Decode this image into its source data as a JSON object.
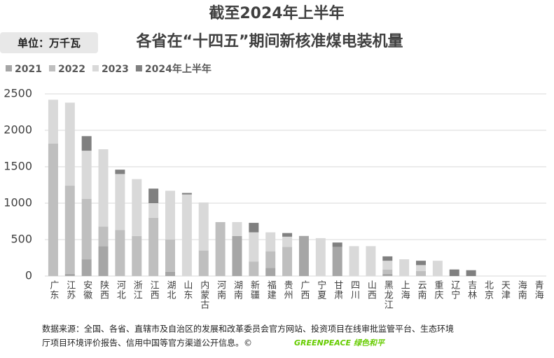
{
  "chart_data": {
    "type": "stacked_bar",
    "title": "截至2024年上半年",
    "subtitle": "各省在“十四五”期间新核准煤电装机量",
    "unit_label": "单位：万千瓦",
    "categories": [
      "广东",
      "江苏",
      "安徽",
      "陕西",
      "河北",
      "浙江",
      "江西",
      "湖北",
      "山东",
      "内蒙古",
      "河南",
      "湖南",
      "新疆",
      "福建",
      "贵州",
      "广西",
      "宁夏",
      "甘肃",
      "四川",
      "山西",
      "黑龙江",
      "上海",
      "云南",
      "重庆",
      "辽宁",
      "吉林",
      "北京",
      "天津",
      "海南",
      "青海"
    ],
    "series": [
      {
        "name": "2021",
        "color": "#a6a6a6",
        "values": [
          0,
          30,
          230,
          410,
          0,
          0,
          0,
          60,
          0,
          0,
          0,
          550,
          0,
          110,
          0,
          550,
          0,
          400,
          0,
          0,
          30,
          0,
          0,
          0,
          0,
          0,
          0,
          0,
          0,
          0
        ]
      },
      {
        "name": "2022",
        "color": "#bfbfbf",
        "values": [
          1820,
          1210,
          830,
          270,
          630,
          550,
          800,
          440,
          0,
          350,
          740,
          0,
          200,
          230,
          400,
          0,
          0,
          0,
          0,
          0,
          60,
          0,
          70,
          0,
          0,
          0,
          0,
          0,
          0,
          0
        ]
      },
      {
        "name": "2023",
        "color": "#d9d9d9",
        "values": [
          600,
          1140,
          660,
          1060,
          770,
          780,
          200,
          670,
          1120,
          660,
          0,
          190,
          400,
          260,
          140,
          0,
          520,
          0,
          410,
          410,
          120,
          230,
          80,
          210,
          0,
          0,
          0,
          0,
          0,
          0
        ]
      },
      {
        "name": "2024年上半年",
        "color": "#808080",
        "values": [
          0,
          0,
          200,
          0,
          60,
          0,
          200,
          0,
          20,
          0,
          0,
          0,
          130,
          0,
          50,
          0,
          0,
          60,
          0,
          0,
          60,
          0,
          60,
          0,
          90,
          80,
          0,
          0,
          0,
          0
        ]
      }
    ],
    "ylim": [
      0,
      2500
    ],
    "yticks": [
      0,
      500,
      1000,
      1500,
      2000,
      2500
    ],
    "grid": true,
    "source": "数据来源：全国、各省、直辖市及自治区的发展和改革委员会官方网站、投资项目在线审批监管平台、生态环境",
    "source_line2": "厅项目环境评价报告、信用中国等官方渠道公开信息。©",
    "logo": "GREENPEACE 绿色和平"
  }
}
